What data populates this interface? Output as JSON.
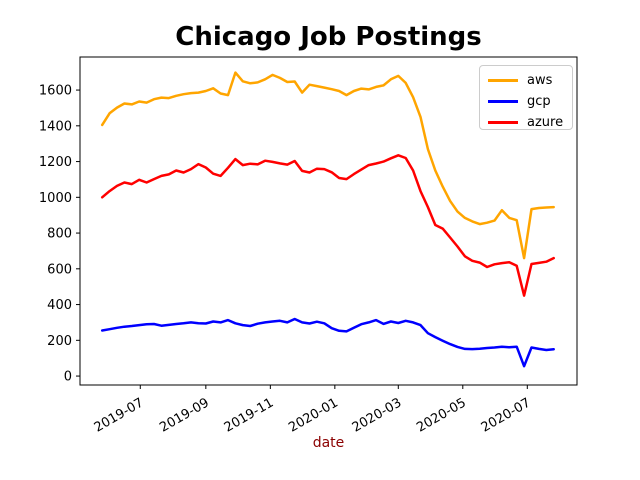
{
  "title": "Chicago Job Postings",
  "xlabel": "date",
  "xlabel_color": "#8B0000",
  "chart_data": {
    "type": "line",
    "title": "Chicago Job Postings",
    "xlabel": "date",
    "ylabel": "",
    "grid": false,
    "legend_position": "upper right",
    "legend_border_color": "#cccccc",
    "x_start_date": "2019-05-26",
    "x_step_days": 7,
    "x_tick_labels": [
      "2019-07",
      "2019-09",
      "2019-11",
      "2020-01",
      "2020-03",
      "2020-05",
      "2020-07"
    ],
    "x_tick_dates": [
      "2019-07-01",
      "2019-09-01",
      "2019-11-01",
      "2020-01-01",
      "2020-03-01",
      "2020-05-01",
      "2020-07-01"
    ],
    "x_tick_rotation_deg": 30,
    "y_ticks": [
      0,
      200,
      400,
      600,
      800,
      1000,
      1200,
      1400,
      1600
    ],
    "ylim": [
      -50,
      1785
    ],
    "xlim_days": [
      -21,
      449
    ],
    "series": [
      {
        "name": "aws",
        "color": "#FFA500",
        "values": [
          1405,
          1470,
          1502,
          1525,
          1520,
          1536,
          1530,
          1549,
          1558,
          1555,
          1568,
          1577,
          1583,
          1586,
          1595,
          1610,
          1581,
          1572,
          1698,
          1649,
          1638,
          1643,
          1660,
          1685,
          1668,
          1645,
          1648,
          1586,
          1630,
          1622,
          1614,
          1605,
          1595,
          1572,
          1595,
          1608,
          1604,
          1618,
          1626,
          1660,
          1679,
          1640,
          1560,
          1450,
          1270,
          1150,
          1060,
          980,
          920,
          885,
          865,
          850,
          858,
          870,
          928,
          885,
          872,
          660,
          934,
          940,
          943,
          945
        ]
      },
      {
        "name": "gcp",
        "color": "#0000FF",
        "values": [
          255,
          262,
          270,
          276,
          280,
          285,
          290,
          291,
          282,
          286,
          291,
          295,
          300,
          296,
          294,
          305,
          300,
          313,
          295,
          285,
          280,
          293,
          300,
          305,
          309,
          300,
          319,
          300,
          294,
          304,
          295,
          268,
          253,
          250,
          270,
          290,
          300,
          313,
          292,
          305,
          297,
          309,
          300,
          285,
          240,
          218,
          198,
          179,
          163,
          152,
          151,
          153,
          157,
          160,
          164,
          161,
          164,
          55,
          160,
          152,
          146,
          150
        ]
      },
      {
        "name": "azure",
        "color": "#FF0000",
        "values": [
          1000,
          1035,
          1064,
          1083,
          1074,
          1098,
          1083,
          1102,
          1120,
          1128,
          1150,
          1139,
          1158,
          1186,
          1167,
          1132,
          1120,
          1165,
          1214,
          1180,
          1188,
          1184,
          1205,
          1198,
          1190,
          1183,
          1203,
          1148,
          1139,
          1160,
          1158,
          1140,
          1108,
          1102,
          1130,
          1155,
          1180,
          1189,
          1200,
          1218,
          1235,
          1220,
          1150,
          1035,
          945,
          845,
          825,
          775,
          725,
          670,
          645,
          635,
          610,
          625,
          632,
          637,
          617,
          450,
          627,
          633,
          640,
          660
        ]
      }
    ]
  }
}
